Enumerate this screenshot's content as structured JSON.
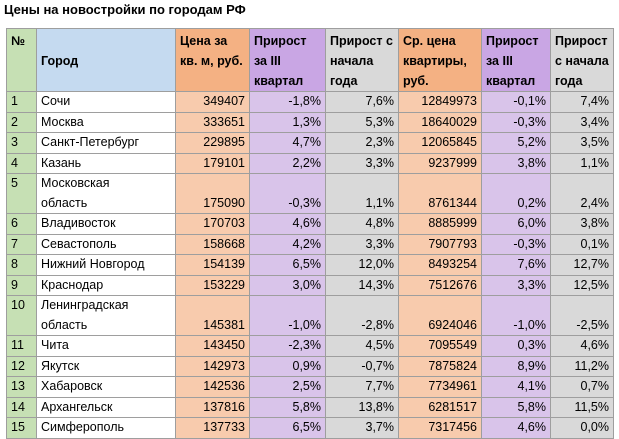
{
  "title": "Цены на новостройки по городам РФ",
  "headers": {
    "num": "№",
    "city": "Город",
    "price_sqm": "Цена за кв. м, руб.",
    "growth_q3": "Прирост за III квартал",
    "growth_ytd": "Прирост с начала года",
    "avg_price": "Ср. цена квартиры, руб.",
    "growth_q3_2": "Прирост за III квартал",
    "growth_ytd_2": "Прирост с начала года"
  },
  "rows": [
    {
      "num": "1",
      "city": "Сочи",
      "price_sqm": "349407",
      "growth_q3": "-1,8%",
      "growth_ytd": "7,6%",
      "avg_price": "12849973",
      "growth_q3_2": "-0,1%",
      "growth_ytd_2": "7,4%"
    },
    {
      "num": "2",
      "city": "Москва",
      "price_sqm": "333651",
      "growth_q3": "1,3%",
      "growth_ytd": "5,3%",
      "avg_price": "18640029",
      "growth_q3_2": "-0,3%",
      "growth_ytd_2": "3,4%"
    },
    {
      "num": "3",
      "city": "Санкт-Петербург",
      "price_sqm": "229895",
      "growth_q3": "4,7%",
      "growth_ytd": "2,3%",
      "avg_price": "12065845",
      "growth_q3_2": "5,2%",
      "growth_ytd_2": "3,5%"
    },
    {
      "num": "4",
      "city": "Казань",
      "price_sqm": "179101",
      "growth_q3": "2,2%",
      "growth_ytd": "3,3%",
      "avg_price": "9237999",
      "growth_q3_2": "3,8%",
      "growth_ytd_2": "1,1%"
    },
    {
      "num": "5",
      "city_line1": "Московская",
      "city_line2": "область",
      "price_sqm": "175090",
      "growth_q3": "-0,3%",
      "growth_ytd": "1,1%",
      "avg_price": "8761344",
      "growth_q3_2": "0,2%",
      "growth_ytd_2": "2,4%"
    },
    {
      "num": "6",
      "city": "Владивосток",
      "price_sqm": "170703",
      "growth_q3": "4,6%",
      "growth_ytd": "4,8%",
      "avg_price": "8885999",
      "growth_q3_2": "6,0%",
      "growth_ytd_2": "3,8%"
    },
    {
      "num": "7",
      "city": "Севастополь",
      "price_sqm": "158668",
      "growth_q3": "4,2%",
      "growth_ytd": "3,3%",
      "avg_price": "7907793",
      "growth_q3_2": "-0,3%",
      "growth_ytd_2": "0,1%"
    },
    {
      "num": "8",
      "city": "Нижний Новгород",
      "price_sqm": "154139",
      "growth_q3": "6,5%",
      "growth_ytd": "12,0%",
      "avg_price": "8493254",
      "growth_q3_2": "7,6%",
      "growth_ytd_2": "12,7%"
    },
    {
      "num": "9",
      "city": "Краснодар",
      "price_sqm": "153229",
      "growth_q3": "3,0%",
      "growth_ytd": "14,3%",
      "avg_price": "7512676",
      "growth_q3_2": "3,3%",
      "growth_ytd_2": "12,5%"
    },
    {
      "num": "10",
      "city_line1": "Ленинградская",
      "city_line2": "область",
      "price_sqm": "145381",
      "growth_q3": "-1,0%",
      "growth_ytd": "-2,8%",
      "avg_price": "6924046",
      "growth_q3_2": "-1,0%",
      "growth_ytd_2": "-2,5%"
    },
    {
      "num": "11",
      "city": "Чита",
      "price_sqm": "143450",
      "growth_q3": "-2,3%",
      "growth_ytd": "4,5%",
      "avg_price": "7095549",
      "growth_q3_2": "0,3%",
      "growth_ytd_2": "4,6%"
    },
    {
      "num": "12",
      "city": "Якутск",
      "price_sqm": "142973",
      "growth_q3": "0,9%",
      "growth_ytd": "-0,7%",
      "avg_price": "7875824",
      "growth_q3_2": "8,9%",
      "growth_ytd_2": "11,2%"
    },
    {
      "num": "13",
      "city": "Хабаровск",
      "price_sqm": "142536",
      "growth_q3": "2,5%",
      "growth_ytd": "7,7%",
      "avg_price": "7734961",
      "growth_q3_2": "4,1%",
      "growth_ytd_2": "0,7%"
    },
    {
      "num": "14",
      "city": "Архангельск",
      "price_sqm": "137816",
      "growth_q3": "5,8%",
      "growth_ytd": "13,8%",
      "avg_price": "6281517",
      "growth_q3_2": "5,8%",
      "growth_ytd_2": "11,5%"
    },
    {
      "num": "15",
      "city": "Симферополь",
      "price_sqm": "137733",
      "growth_q3": "6,5%",
      "growth_ytd": "3,7%",
      "avg_price": "7317456",
      "growth_q3_2": "4,6%",
      "growth_ytd_2": "0,0%"
    }
  ],
  "colors": {
    "num_col": "#c6e0b4",
    "city_col": "#d5e5f5",
    "price_col": "#f8cbad",
    "growth_q3_col": "#d9c4ea",
    "growth_ytd_col": "#d9d9d9"
  }
}
